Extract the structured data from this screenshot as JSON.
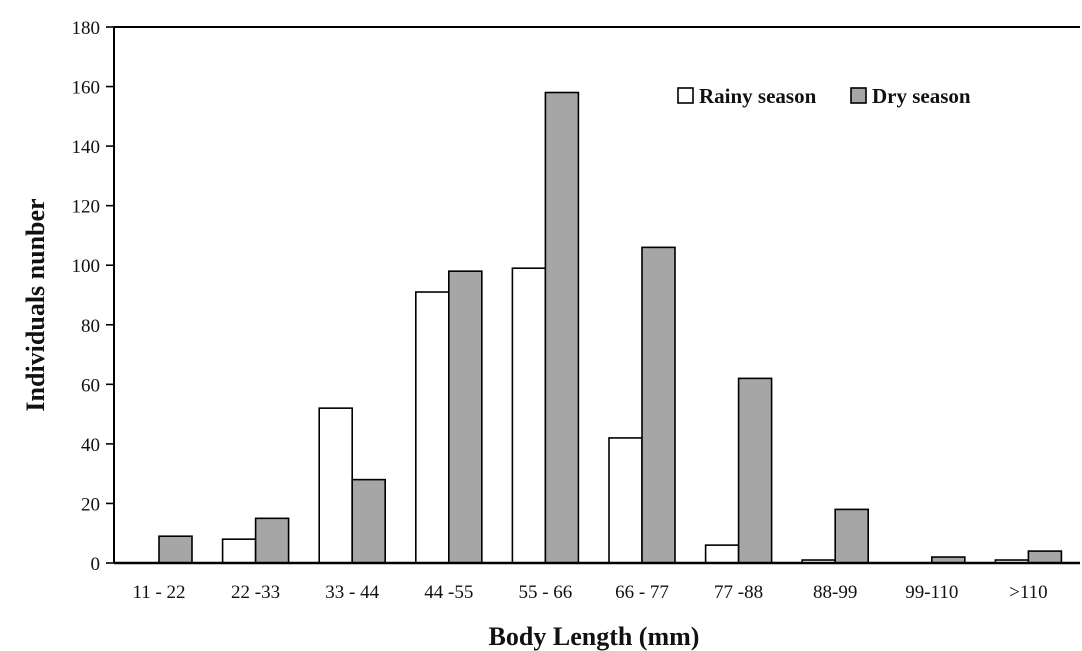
{
  "chart_data": {
    "type": "bar",
    "xlabel": "Body Length (mm)",
    "ylabel": "Individuals nunber",
    "ylim": [
      0,
      180
    ],
    "yticks": [
      0,
      20,
      40,
      60,
      80,
      100,
      120,
      140,
      160,
      180
    ],
    "categories": [
      "11 - 22",
      "22 -33",
      "33 - 44",
      "44 -55",
      "55 - 66",
      "66 - 77",
      "77 -88",
      "88-99",
      "99-110",
      ">110"
    ],
    "series": [
      {
        "name": "Rainy season",
        "color": "#ffffff",
        "values": [
          0,
          8,
          52,
          91,
          99,
          42,
          6,
          1,
          0,
          1
        ]
      },
      {
        "name": "Dry season",
        "color": "#a6a6a6",
        "values": [
          9,
          15,
          28,
          98,
          158,
          106,
          62,
          18,
          2,
          4
        ]
      }
    ],
    "legend": {
      "position": "top-right"
    },
    "grid": false
  }
}
